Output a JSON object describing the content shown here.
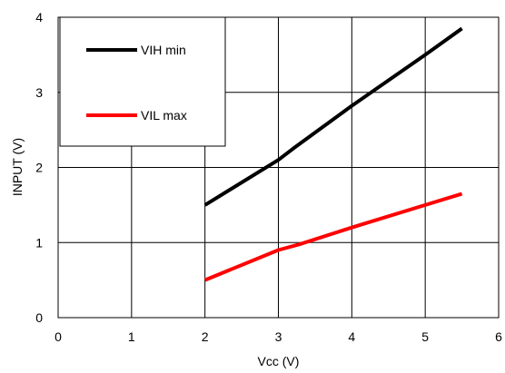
{
  "chart_data": {
    "type": "line",
    "title": "",
    "xlabel": "Vcc (V)",
    "ylabel": "INPUT  (V)",
    "xlim": [
      0,
      6
    ],
    "ylim": [
      0,
      4
    ],
    "xticks": [
      "0",
      "1",
      "2",
      "3",
      "4",
      "5",
      "6"
    ],
    "yticks": [
      "0",
      "1",
      "2",
      "3",
      "4"
    ],
    "grid": true,
    "legend_position": "top-left",
    "series": [
      {
        "name": "VIH min",
        "color": "#000000",
        "x": [
          2,
          3,
          3.2,
          4,
          5,
          5.5
        ],
        "y": [
          1.5,
          2.1,
          2.25,
          2.82,
          3.5,
          3.85
        ]
      },
      {
        "name": "VIL max",
        "color": "#ff0000",
        "x": [
          2,
          3,
          3.3,
          4,
          5,
          5.5
        ],
        "y": [
          0.5,
          0.9,
          0.98,
          1.2,
          1.5,
          1.65
        ]
      }
    ]
  }
}
